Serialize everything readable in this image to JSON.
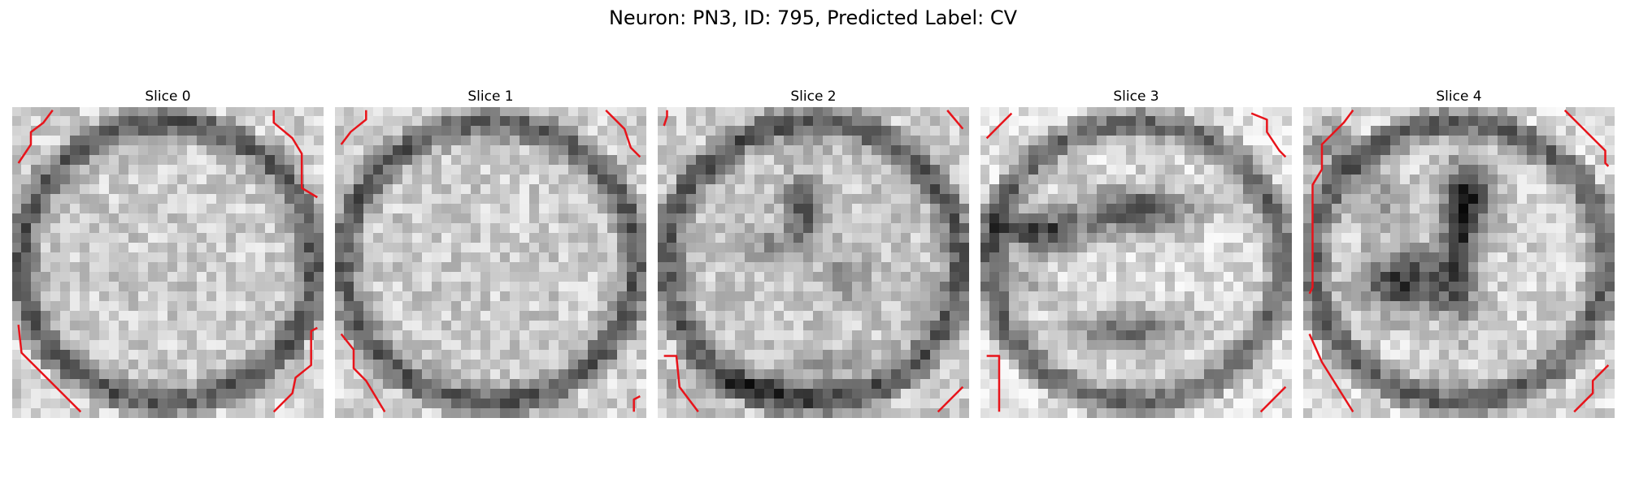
{
  "figure": {
    "title": "Neuron: PN3, ID: 795, Predicted Label: CV"
  },
  "panels": [
    {
      "title": "Slice 0",
      "pattern": "bright-disc"
    },
    {
      "title": "Slice 1",
      "pattern": "bright-disc"
    },
    {
      "title": "Slice 2",
      "pattern": "center-dark-spots"
    },
    {
      "title": "Slice 3",
      "pattern": "dark-bands"
    },
    {
      "title": "Slice 4",
      "pattern": "dark-v-shape"
    }
  ],
  "colors": {
    "background": "#ffffff",
    "contour": "#e8141b",
    "colormap": "grayscale"
  }
}
